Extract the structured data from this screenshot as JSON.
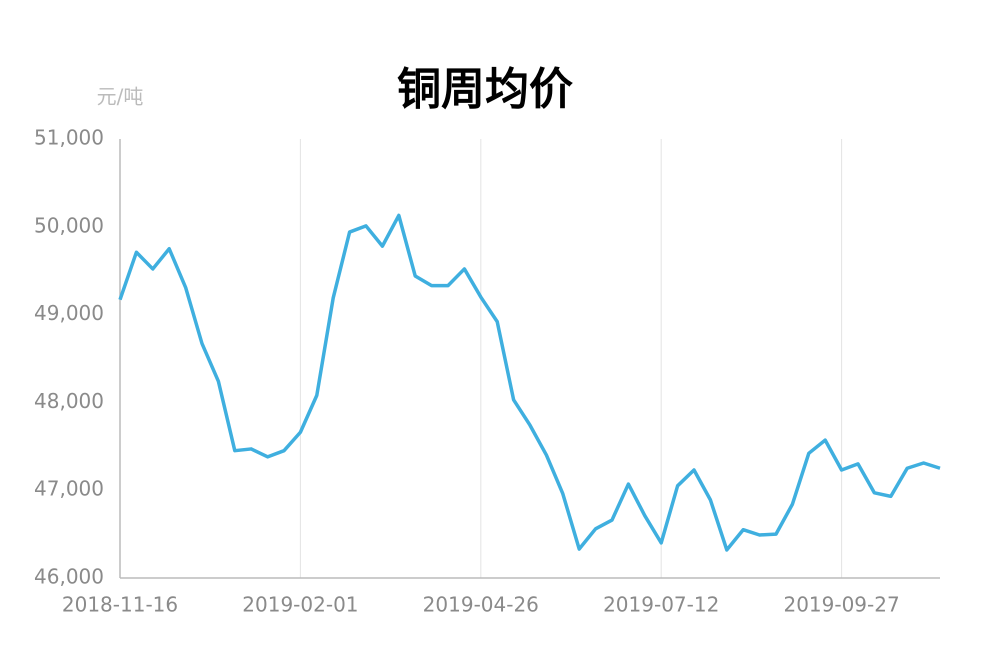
{
  "chart_data": {
    "type": "line",
    "title": "铜周均价",
    "y_axis_label": "元/吨",
    "categories": [
      "2018-11-16",
      null,
      null,
      null,
      null,
      null,
      null,
      null,
      null,
      null,
      null,
      "2019-02-01",
      null,
      null,
      null,
      null,
      null,
      null,
      null,
      null,
      null,
      null,
      "2019-04-26",
      null,
      null,
      null,
      null,
      null,
      null,
      null,
      null,
      null,
      null,
      "2019-07-12",
      null,
      null,
      null,
      null,
      null,
      null,
      null,
      null,
      null,
      null,
      "2019-09-27",
      null,
      null,
      null,
      null,
      null,
      null
    ],
    "series": [
      {
        "name": "铜周均价",
        "color": "#3fafdf",
        "values": [
          49170,
          49710,
          49520,
          49750,
          49310,
          48670,
          48240,
          47450,
          47470,
          47380,
          47450,
          47660,
          48080,
          49190,
          49940,
          50010,
          49780,
          50130,
          49440,
          49330,
          49330,
          49520,
          49200,
          48920,
          48030,
          47740,
          47400,
          46960,
          46330,
          46560,
          46660,
          47070,
          46710,
          46400,
          47050,
          47230,
          46890,
          46320,
          46550,
          46490,
          46500,
          46840,
          47420,
          47570,
          47230,
          47300,
          46970,
          46930,
          47250,
          47310,
          47250
        ]
      }
    ],
    "ylim": [
      46000,
      51000
    ],
    "yticks": [
      {
        "value": 46000,
        "label": "46,000"
      },
      {
        "value": 47000,
        "label": "47,000"
      },
      {
        "value": 48000,
        "label": "48,000"
      },
      {
        "value": 49000,
        "label": "49,000"
      },
      {
        "value": 50000,
        "label": "50,000"
      },
      {
        "value": 51000,
        "label": "51,000"
      }
    ],
    "grid": true
  }
}
